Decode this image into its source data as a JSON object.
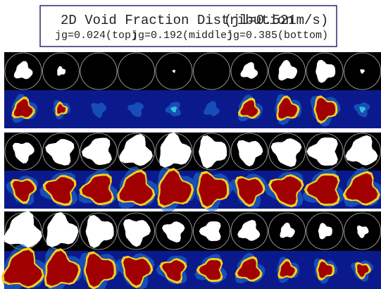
{
  "header": {
    "title": "2D Void Fraction Distribution",
    "condition": "(jl=0.521m/s)",
    "cases": [
      "jg=0.024(top)",
      "jg=0.192(middle)",
      "jg=0.385(bottom)"
    ]
  }
}
